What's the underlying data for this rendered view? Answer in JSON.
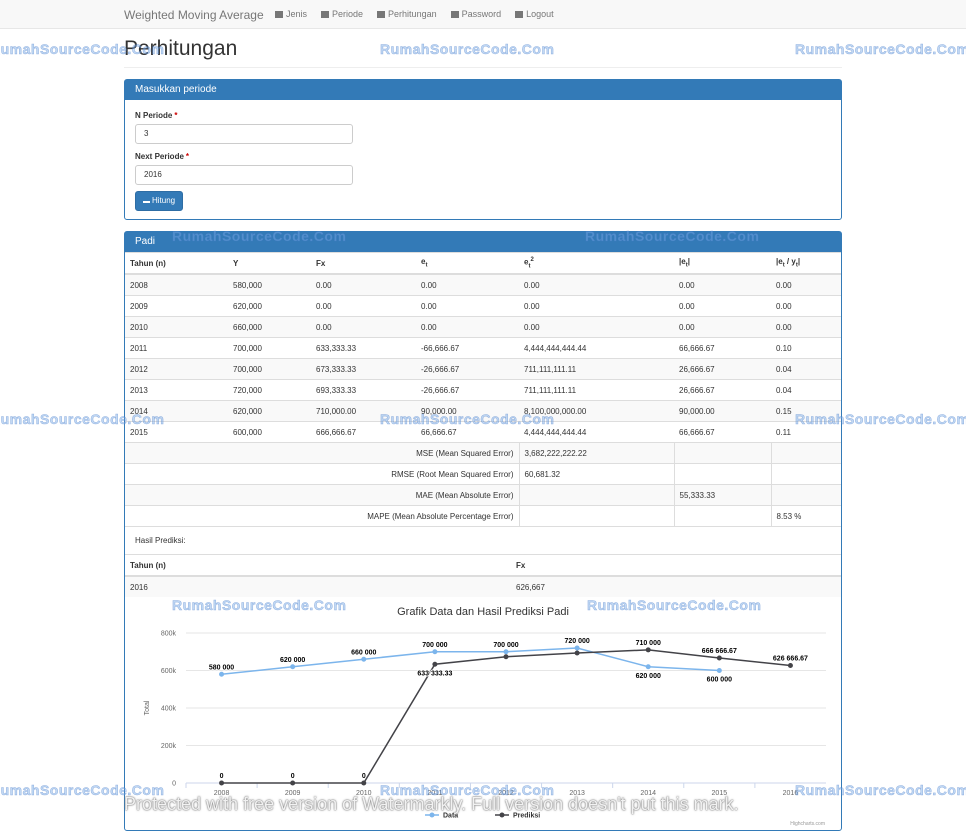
{
  "navbar": {
    "brand": "Weighted Moving Average",
    "items": [
      "Jenis",
      "Periode",
      "Perhitungan",
      "Password",
      "Logout"
    ]
  },
  "page_title": "Perhitungan",
  "form_panel": {
    "heading": "Masukkan periode",
    "fields": [
      {
        "label": "N Periode",
        "required": "*",
        "value": "3"
      },
      {
        "label": "Next Periode",
        "required": "*",
        "value": "2016"
      }
    ],
    "button": "Hitung"
  },
  "result_panel": {
    "heading": "Padi",
    "table": {
      "headers": [
        "Tahun (n)",
        "Y",
        "Fx",
        [
          {
            "text": "e"
          },
          {
            "sub": "t"
          }
        ],
        [
          {
            "text": "e"
          },
          {
            "sub": "t"
          },
          {
            "sup": "2"
          }
        ],
        [
          {
            "text": "|e"
          },
          {
            "sub": "t"
          },
          {
            "text": "|"
          }
        ],
        [
          {
            "text": "|e"
          },
          {
            "sub": "t"
          },
          {
            "text": " / y"
          },
          {
            "sub": "t"
          },
          {
            "text": "|"
          }
        ]
      ],
      "rows": [
        [
          "2008",
          "580,000",
          "0.00",
          "0.00",
          "0.00",
          "0.00",
          "0.00"
        ],
        [
          "2009",
          "620,000",
          "0.00",
          "0.00",
          "0.00",
          "0.00",
          "0.00"
        ],
        [
          "2010",
          "660,000",
          "0.00",
          "0.00",
          "0.00",
          "0.00",
          "0.00"
        ],
        [
          "2011",
          "700,000",
          "633,333.33",
          "-66,666.67",
          "4,444,444,444.44",
          "66,666.67",
          "0.10"
        ],
        [
          "2012",
          "700,000",
          "673,333.33",
          "-26,666.67",
          "711,111,111.11",
          "26,666.67",
          "0.04"
        ],
        [
          "2013",
          "720,000",
          "693,333.33",
          "-26,666.67",
          "711,111,111.11",
          "26,666.67",
          "0.04"
        ],
        [
          "2014",
          "620,000",
          "710,000.00",
          "90,000.00",
          "8,100,000,000.00",
          "90,000.00",
          "0.15"
        ],
        [
          "2015",
          "600,000",
          "666,666.67",
          "66,666.67",
          "4,444,444,444.44",
          "66,666.67",
          "0.11"
        ]
      ],
      "summary": [
        [
          "MSE (Mean Squared Error)",
          "3,682,222,222.22",
          null,
          null
        ],
        [
          "RMSE (Root Mean Squared Error)",
          "60,681.32",
          null,
          null
        ],
        [
          "MAE (Mean Absolute Error)",
          null,
          "55,333.33",
          null
        ],
        [
          "MAPE (Mean Absolute Percentage Error)",
          null,
          null,
          "8.53 %"
        ]
      ]
    },
    "prediction": {
      "label": "Hasil Prediksi:",
      "headers": [
        "Tahun (n)",
        "Fx"
      ],
      "rows": [
        [
          "2016",
          "626,667"
        ]
      ]
    }
  },
  "chart_data": {
    "type": "line",
    "title": "Grafik Data dan Hasil Prediksi Padi",
    "y_label": "Total",
    "categories": [
      "2008",
      "2009",
      "2010",
      "2011",
      "2012",
      "2013",
      "2014",
      "2015",
      "2016"
    ],
    "series": [
      {
        "name": "Data",
        "color": "#7cb5ec",
        "values": [
          580000,
          620000,
          660000,
          700000,
          700000,
          720000,
          620000,
          600000,
          null
        ],
        "value_labels": [
          "580 000",
          "620 000",
          "660 000",
          "700 000",
          "700 000",
          "720 000",
          "620 000",
          "600 000",
          null
        ]
      },
      {
        "name": "Prediksi",
        "color": "#434348",
        "values": [
          0,
          0,
          0,
          633333.33,
          673333.33,
          693333.33,
          710000,
          666666.67,
          626666.67
        ],
        "value_labels": [
          "0",
          "0",
          "0",
          "633 333.33",
          null,
          null,
          "710 000",
          "666 666.67",
          "626 666.67"
        ]
      }
    ],
    "ylim": [
      0,
      800000
    ],
    "yticks": [
      0,
      {
        "value": 200000,
        "label": "200k"
      },
      {
        "value": 400000,
        "label": "400k"
      },
      {
        "value": 600000,
        "label": "600k"
      },
      {
        "value": 800000,
        "label": "800k"
      }
    ],
    "grid": true,
    "credit": "Highcharts.com"
  },
  "watermark": {
    "site": "RumahSourceCode.Com",
    "notice": "Protected with free version of Watermarkly. Full version doesn't put this mark."
  }
}
